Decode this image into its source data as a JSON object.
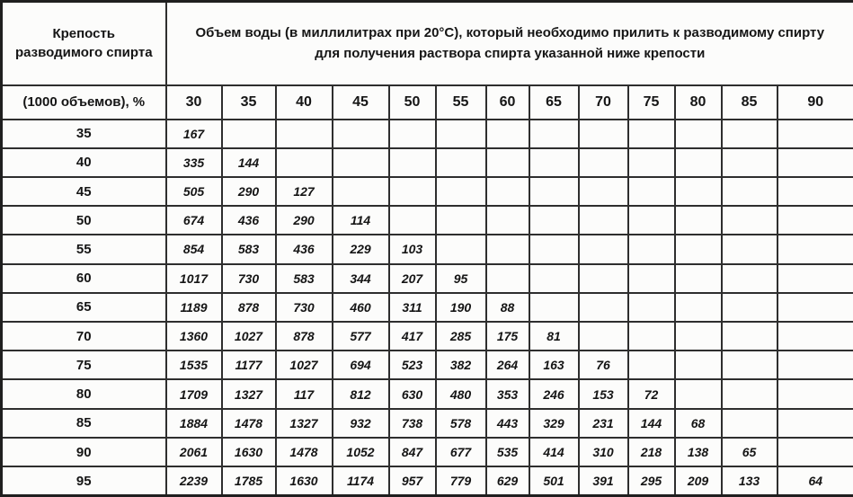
{
  "header": {
    "left_title_line1": "Крепость",
    "left_title_line2": "разводимого спирта",
    "left_subtitle": "(1000 объемов), %",
    "top_title_line1": "Объем воды (в миллилитрах при 20°C), который необходимо прилить к разводимому спирту",
    "top_title_line2": "для получения раствора спирта указанной ниже крепости"
  },
  "colors": {
    "border": "#2e2e2e",
    "text": "#151515",
    "background": "#fcfcfb"
  },
  "chart_data": {
    "type": "table",
    "title": "Объем воды (в миллилитрах при 20°C), который необходимо прилить к разводимому спирту для получения раствора спирта указанной ниже крепости",
    "row_header": "Крепость разводимого спирта (1000 объемов), %",
    "columns": [
      "30",
      "35",
      "40",
      "45",
      "50",
      "55",
      "60",
      "65",
      "70",
      "75",
      "80",
      "85",
      "90"
    ],
    "rows": [
      {
        "label": "35",
        "values": [
          "167"
        ]
      },
      {
        "label": "40",
        "values": [
          "335",
          "144"
        ]
      },
      {
        "label": "45",
        "values": [
          "505",
          "290",
          "127"
        ]
      },
      {
        "label": "50",
        "values": [
          "674",
          "436",
          "290",
          "114"
        ]
      },
      {
        "label": "55",
        "values": [
          "854",
          "583",
          "436",
          "229",
          "103"
        ]
      },
      {
        "label": "60",
        "values": [
          "1017",
          "730",
          "583",
          "344",
          "207",
          "95"
        ]
      },
      {
        "label": "65",
        "values": [
          "1189",
          "878",
          "730",
          "460",
          "311",
          "190",
          "88"
        ]
      },
      {
        "label": "70",
        "values": [
          "1360",
          "1027",
          "878",
          "577",
          "417",
          "285",
          "175",
          "81"
        ]
      },
      {
        "label": "75",
        "values": [
          "1535",
          "1177",
          "1027",
          "694",
          "523",
          "382",
          "264",
          "163",
          "76"
        ]
      },
      {
        "label": "80",
        "values": [
          "1709",
          "1327",
          "117",
          "812",
          "630",
          "480",
          "353",
          "246",
          "153",
          "72"
        ]
      },
      {
        "label": "85",
        "values": [
          "1884",
          "1478",
          "1327",
          "932",
          "738",
          "578",
          "443",
          "329",
          "231",
          "144",
          "68"
        ]
      },
      {
        "label": "90",
        "values": [
          "2061",
          "1630",
          "1478",
          "1052",
          "847",
          "677",
          "535",
          "414",
          "310",
          "218",
          "138",
          "65"
        ]
      },
      {
        "label": "95",
        "values": [
          "2239",
          "1785",
          "1630",
          "1174",
          "957",
          "779",
          "629",
          "501",
          "391",
          "295",
          "209",
          "133",
          "64"
        ]
      }
    ]
  }
}
